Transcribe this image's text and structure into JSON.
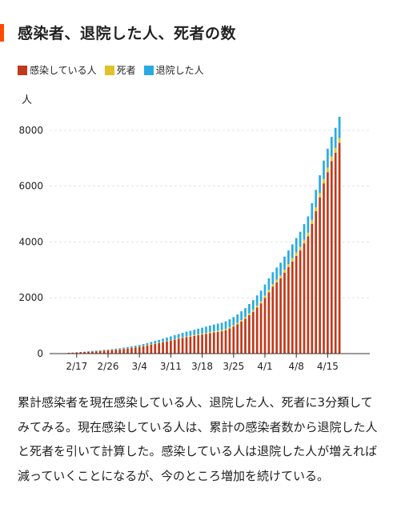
{
  "title": "感染者、退院した人、死者の数",
  "colors": {
    "accent": "#ff4b00",
    "infected": "#c1391b",
    "death": "#e2c226",
    "recovered": "#29abe2"
  },
  "legend": [
    "感染している人",
    "死者",
    "退院した人"
  ],
  "chart_data": {
    "type": "bar",
    "stacked": true,
    "ylabel": "人",
    "ylim": [
      0,
      9000
    ],
    "yticks": [
      0,
      2000,
      4000,
      6000,
      8000
    ],
    "xtick_labels": [
      "2/17",
      "2/26",
      "3/4",
      "3/11",
      "3/18",
      "3/25",
      "4/1",
      "4/8",
      "4/15"
    ],
    "grid": true,
    "series": [
      {
        "name": "感染している人",
        "color": "#c1391b",
        "values": [
          30,
          35,
          45,
          55,
          65,
          75,
          85,
          95,
          105,
          120,
          130,
          140,
          150,
          160,
          175,
          190,
          210,
          230,
          250,
          275,
          300,
          330,
          355,
          380,
          410,
          440,
          470,
          500,
          530,
          560,
          590,
          610,
          635,
          660,
          685,
          710,
          735,
          760,
          780,
          800,
          840,
          900,
          970,
          1050,
          1150,
          1250,
          1380,
          1500,
          1650,
          1800,
          2000,
          2200,
          2400,
          2550,
          2700,
          2900,
          3100,
          3300,
          3500,
          3700,
          3950,
          4200,
          4650,
          5100,
          5600,
          6100,
          6500,
          6900,
          7200,
          7550
        ]
      },
      {
        "name": "死者",
        "color": "#e2c226",
        "values": [
          0,
          0,
          0,
          0,
          0,
          1,
          1,
          1,
          2,
          2,
          2,
          3,
          3,
          4,
          4,
          5,
          5,
          6,
          6,
          7,
          8,
          9,
          10,
          12,
          14,
          16,
          18,
          20,
          22,
          24,
          26,
          28,
          30,
          32,
          34,
          36,
          38,
          40,
          42,
          44,
          46,
          48,
          50,
          52,
          55,
          58,
          62,
          66,
          70,
          75,
          80,
          85,
          90,
          95,
          100,
          105,
          110,
          115,
          120,
          125,
          130,
          135,
          140,
          145,
          150,
          155,
          160,
          165,
          170,
          175
        ]
      },
      {
        "name": "退院した人",
        "color": "#29abe2",
        "values": [
          0,
          0,
          0,
          0,
          0,
          5,
          8,
          10,
          12,
          15,
          18,
          20,
          25,
          30,
          35,
          40,
          45,
          50,
          55,
          60,
          70,
          80,
          90,
          100,
          110,
          120,
          130,
          140,
          150,
          160,
          170,
          180,
          190,
          200,
          210,
          220,
          230,
          240,
          250,
          260,
          270,
          280,
          290,
          300,
          310,
          320,
          335,
          350,
          365,
          380,
          395,
          410,
          425,
          440,
          455,
          470,
          485,
          500,
          520,
          540,
          560,
          580,
          600,
          620,
          640,
          660,
          680,
          700,
          720,
          760
        ]
      }
    ]
  },
  "paragraph": "累計感染者を現在感染している人、退院した人、死者に3分類してみてみる。現在感染している人は、累計の感染者数から退院した人と死者を引いて計算した。感染している人は退院した人が増えれば減っていくことになるが、今のところ増加を続けている。"
}
